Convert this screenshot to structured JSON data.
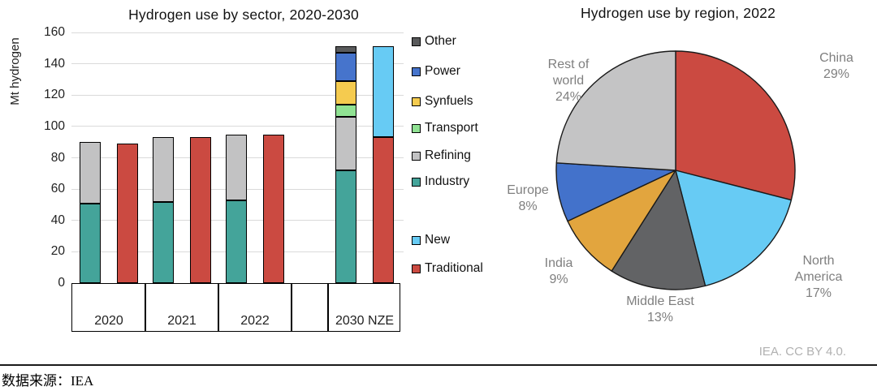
{
  "source_note": {
    "text": "数据来源：IEA"
  },
  "chart_data": [
    {
      "type": "bar",
      "title": "Hydrogen use by sector, 2020-2030",
      "ylabel": "Mt hydrogen",
      "xlabel": "",
      "ylim": [
        0,
        160
      ],
      "ytick_step": 20,
      "grid": true,
      "legend_position": "right",
      "categories": [
        "2020",
        "2021",
        "2022",
        "2030 NZE"
      ],
      "series": [
        {
          "name": "Industry",
          "stack": "sector",
          "color": "#44A49A",
          "values": [
            51,
            52,
            53,
            72
          ]
        },
        {
          "name": "Refining",
          "stack": "sector",
          "color": "#C2C2C3",
          "values": [
            39,
            41,
            42,
            34
          ]
        },
        {
          "name": "Transport",
          "stack": "sector",
          "color": "#90E293",
          "values": [
            0,
            0,
            0,
            8
          ]
        },
        {
          "name": "Synfuels",
          "stack": "sector",
          "color": "#F5CB4F",
          "values": [
            0,
            0,
            0,
            15
          ]
        },
        {
          "name": "Power",
          "stack": "sector",
          "color": "#4674CC",
          "values": [
            0,
            0,
            0,
            18
          ]
        },
        {
          "name": "Other",
          "stack": "sector",
          "color": "#595A5B",
          "values": [
            0,
            0,
            0,
            4
          ]
        },
        {
          "name": "Traditional",
          "stack": "type",
          "color": "#CB4A41",
          "values": [
            89,
            93,
            95,
            93
          ]
        },
        {
          "name": "New",
          "stack": "type",
          "color": "#67CBF4",
          "values": [
            0,
            0,
            0,
            58
          ]
        }
      ],
      "legend": {
        "top": [
          "Other",
          "Power",
          "Synfuels",
          "Transport",
          "Refining",
          "Industry"
        ],
        "bottom": [
          "New",
          "Traditional"
        ]
      }
    },
    {
      "type": "pie",
      "title": "Hydrogen use by region, 2022",
      "unit": "%",
      "direction": "clockwise",
      "start_angle_deg": 0,
      "annotation": "IEA. CC BY 4.0.",
      "slices": [
        {
          "label": "China",
          "value": 29,
          "color": "#CB4A41"
        },
        {
          "label": "North America",
          "value": 17,
          "color": "#67CBF4"
        },
        {
          "label": "Middle East",
          "value": 13,
          "color": "#626365"
        },
        {
          "label": "India",
          "value": 9,
          "color": "#E2A53E"
        },
        {
          "label": "Europe",
          "value": 8,
          "color": "#4372CB"
        },
        {
          "label": "Rest of world",
          "value": 24,
          "color": "#C4C4C5"
        }
      ]
    }
  ]
}
